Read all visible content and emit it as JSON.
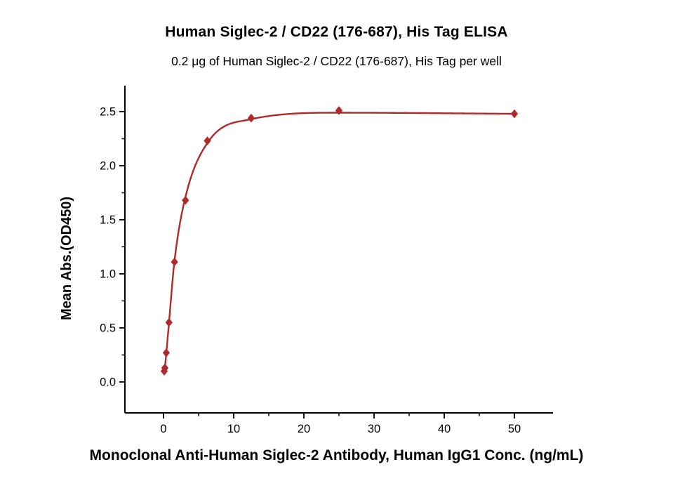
{
  "page": {
    "title": "Human Siglec-2 / CD22 (176-687), His Tag ELISA",
    "subtitle": "0.2 μg of Human Siglec-2 / CD22 (176-687), His Tag per well",
    "x_axis_label": "Monoclonal Anti-Human Siglec-2 Antibody, Human IgG1 Conc. (ng/mL)",
    "y_axis_label": "Mean Abs.(OD450)"
  },
  "chart_data": {
    "type": "scatter",
    "title": "Human Siglec-2 / CD22 (176-687), His Tag ELISA",
    "subtitle": "0.2 μg of Human Siglec-2 / CD22 (176-687), His Tag per well",
    "xlabel": "Monoclonal Anti-Human Siglec-2 Antibody, Human IgG1 Conc. (ng/mL)",
    "ylabel": "Mean Abs.(OD450)",
    "xlim": [
      -5.5,
      55.5
    ],
    "ylim": [
      -0.286,
      2.74
    ],
    "grid": false,
    "legend": null,
    "x_ticks": [
      "0",
      "10",
      "20",
      "30",
      "40",
      "50"
    ],
    "x_tick_values": [
      0,
      10,
      20,
      30,
      40,
      50
    ],
    "x_minor_tick_values": [
      5,
      15,
      25,
      35,
      45
    ],
    "y_ticks": [
      "0.0",
      "0.5",
      "1.0",
      "1.5",
      "2.0",
      "2.5"
    ],
    "y_tick_values": [
      0.0,
      0.5,
      1.0,
      1.5,
      2.0,
      2.5
    ],
    "y_minor_tick_values": [
      0.25,
      0.75,
      1.25,
      1.75,
      2.25
    ],
    "points": {
      "name": "Mean Abs.(OD450) data points",
      "x": [
        0.098,
        0.195,
        0.39,
        0.781,
        1.563,
        3.125,
        6.25,
        12.5,
        25,
        50
      ],
      "y": [
        0.1,
        0.13,
        0.27,
        0.55,
        1.11,
        1.68,
        2.23,
        2.44,
        2.51,
        2.48
      ]
    },
    "fit_curve": {
      "name": "4PL fitted curve",
      "x": [
        0.098,
        0.195,
        0.39,
        0.781,
        1.563,
        3.125,
        6.25,
        12.5,
        25,
        50
      ],
      "y": [
        0.08,
        0.13,
        0.26,
        0.55,
        1.12,
        1.71,
        2.21,
        2.43,
        2.49,
        2.48
      ]
    },
    "marker": {
      "shape": "diamond",
      "color": "#b02a2a",
      "half_width": 4.5,
      "half_height": 5.5
    },
    "line_color": "#b02a2a",
    "axis_color": "#000000"
  }
}
